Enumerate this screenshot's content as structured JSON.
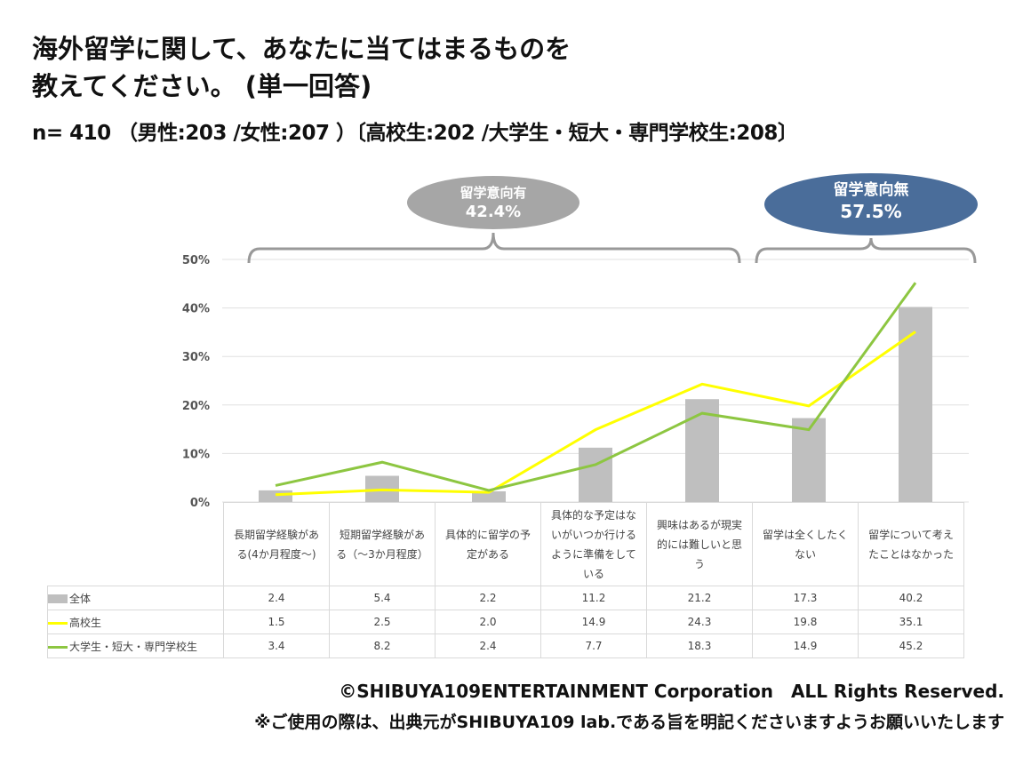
{
  "title_line1": "海外留学に関して、あなたに当てはまるものを",
  "title_line2": "教えてください。 (単一回答)",
  "subtitle": "n= 410 （男性:203 /女性:207 ）〔高校生:202 /大学生・短大・専門学校生:208〕",
  "callouts": [
    {
      "label": "留学意向有",
      "value": "42.4%",
      "color": "#a6a6a6"
    },
    {
      "label": "留学意向無",
      "value": "57.5%",
      "color": "#4a6d9a"
    }
  ],
  "chart_data": {
    "type": "bar+line",
    "categories": [
      "長期留学経験がある(4か月程度〜)",
      "短期留学経験がある（〜3か月程度）",
      "具体的に留学の予定がある",
      "具体的な予定はないがいつか行けるように準備をしている",
      "興味はあるが現実的には難しいと思う",
      "留学は全くしたくない",
      "留学について考えたことはなかった"
    ],
    "yticks": [
      "0%",
      "10%",
      "20%",
      "30%",
      "40%",
      "50%"
    ],
    "ylim": [
      0,
      50
    ],
    "series": [
      {
        "name": "全体",
        "type": "bar",
        "color": "#bfbfbf",
        "values": [
          2.4,
          5.4,
          2.2,
          11.2,
          21.2,
          17.3,
          40.2
        ]
      },
      {
        "name": "高校生",
        "type": "line",
        "color": "#ffff00",
        "values": [
          1.5,
          2.5,
          2.0,
          14.9,
          24.3,
          19.8,
          35.1
        ]
      },
      {
        "name": "大学生・短大・専門学校生",
        "type": "line",
        "color": "#8dc641",
        "values": [
          3.4,
          8.2,
          2.4,
          7.7,
          18.3,
          14.9,
          45.2
        ]
      }
    ]
  },
  "footer": {
    "copyright": "©SHIBUYA109ENTERTAINMENT Corporation　ALL Rights Reserved.",
    "note": "※ご使用の際は、出典元がSHIBUYA109 lab.である旨を明記くださいますようお願いいたします"
  }
}
